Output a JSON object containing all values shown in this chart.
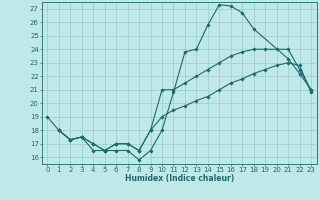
{
  "xlabel": "Humidex (Indice chaleur)",
  "xlim": [
    -0.5,
    23.5
  ],
  "ylim": [
    15.5,
    27.5
  ],
  "xticks": [
    0,
    1,
    2,
    3,
    4,
    5,
    6,
    7,
    8,
    9,
    10,
    11,
    12,
    13,
    14,
    15,
    16,
    17,
    18,
    19,
    20,
    21,
    22,
    23
  ],
  "yticks": [
    16,
    17,
    18,
    19,
    20,
    21,
    22,
    23,
    24,
    25,
    26,
    27
  ],
  "bg_color": "#c0e8e8",
  "grid_color": "#98cece",
  "line_color": "#1a6b6b",
  "line1_x": [
    0,
    1,
    2,
    3,
    4,
    5,
    6,
    7,
    8,
    9,
    10,
    11,
    12,
    13,
    14,
    15,
    16,
    17,
    18,
    21,
    22,
    23
  ],
  "line1_y": [
    19,
    18,
    17.3,
    17.5,
    16.5,
    16.5,
    16.5,
    16.5,
    15.8,
    16.5,
    18.0,
    20.8,
    23.8,
    24.0,
    25.8,
    27.3,
    27.2,
    26.7,
    25.5,
    23.3,
    22.2,
    21.0
  ],
  "line2_x": [
    1,
    2,
    3,
    4,
    5,
    6,
    7,
    8,
    9,
    10,
    11,
    12,
    13,
    14,
    15,
    16,
    17,
    18,
    19,
    20,
    21,
    22,
    23
  ],
  "line2_y": [
    18,
    17.3,
    17.5,
    17.0,
    16.5,
    17.0,
    17.0,
    16.5,
    18.0,
    21.0,
    21.0,
    21.5,
    22.0,
    22.5,
    23.0,
    23.5,
    23.8,
    24.0,
    24.0,
    24.0,
    24.0,
    22.5,
    21.0
  ],
  "line3_x": [
    1,
    2,
    3,
    4,
    5,
    6,
    7,
    8,
    9,
    10,
    11,
    12,
    13,
    14,
    15,
    16,
    17,
    18,
    19,
    20,
    21,
    22,
    23
  ],
  "line3_y": [
    18,
    17.3,
    17.5,
    17.0,
    16.5,
    17.0,
    17.0,
    16.5,
    18.0,
    19.0,
    19.5,
    19.8,
    20.2,
    20.5,
    21.0,
    21.5,
    21.8,
    22.2,
    22.5,
    22.8,
    23.0,
    22.8,
    20.8
  ]
}
